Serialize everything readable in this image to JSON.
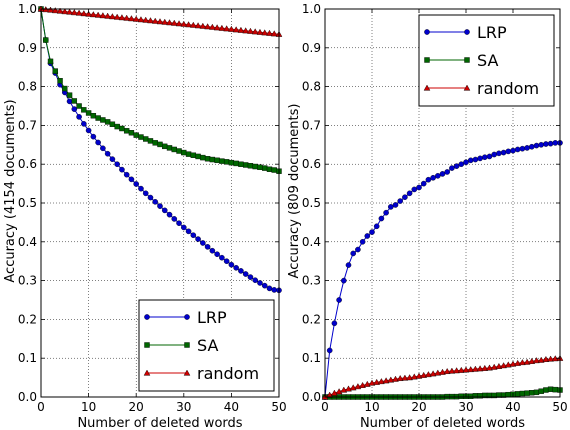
{
  "chart_data": [
    {
      "type": "line",
      "xlabel": "Number of deleted words",
      "ylabel": "Accuracy    (4154 documents)",
      "xlim": [
        0,
        50
      ],
      "ylim": [
        0,
        1.0
      ],
      "xticks": [
        "0",
        "10",
        "20",
        "30",
        "40",
        "50"
      ],
      "yticks": [
        "0.0",
        "0.1",
        "0.2",
        "0.3",
        "0.4",
        "0.5",
        "0.6",
        "0.7",
        "0.8",
        "0.9",
        "1.0"
      ],
      "grid": true,
      "legend_position": "bottom-right",
      "x": [
        0,
        1,
        2,
        3,
        4,
        5,
        6,
        7,
        8,
        9,
        10,
        11,
        12,
        13,
        14,
        15,
        16,
        17,
        18,
        19,
        20,
        21,
        22,
        23,
        24,
        25,
        26,
        27,
        28,
        29,
        30,
        31,
        32,
        33,
        34,
        35,
        36,
        37,
        38,
        39,
        40,
        41,
        42,
        43,
        44,
        45,
        46,
        47,
        48,
        49,
        50
      ],
      "series": [
        {
          "name": "LRP",
          "color": "#0000cc",
          "marker": "circle",
          "values": [
            1.0,
            0.92,
            0.86,
            0.835,
            0.805,
            0.785,
            0.762,
            0.742,
            0.722,
            0.704,
            0.687,
            0.671,
            0.656,
            0.641,
            0.627,
            0.613,
            0.6,
            0.586,
            0.573,
            0.561,
            0.549,
            0.537,
            0.525,
            0.514,
            0.503,
            0.492,
            0.481,
            0.47,
            0.459,
            0.448,
            0.437,
            0.427,
            0.417,
            0.407,
            0.397,
            0.387,
            0.377,
            0.368,
            0.359,
            0.35,
            0.341,
            0.333,
            0.325,
            0.317,
            0.309,
            0.301,
            0.294,
            0.287,
            0.28,
            0.276,
            0.275
          ]
        },
        {
          "name": "SA",
          "color": "#006600",
          "marker": "square",
          "values": [
            1.0,
            0.92,
            0.865,
            0.84,
            0.815,
            0.795,
            0.778,
            0.763,
            0.75,
            0.74,
            0.732,
            0.725,
            0.719,
            0.714,
            0.709,
            0.703,
            0.697,
            0.692,
            0.686,
            0.681,
            0.675,
            0.67,
            0.665,
            0.66,
            0.655,
            0.651,
            0.646,
            0.642,
            0.638,
            0.634,
            0.63,
            0.626,
            0.623,
            0.62,
            0.617,
            0.614,
            0.612,
            0.61,
            0.608,
            0.606,
            0.604,
            0.602,
            0.6,
            0.598,
            0.596,
            0.594,
            0.592,
            0.59,
            0.587,
            0.585,
            0.582
          ]
        },
        {
          "name": "random",
          "color": "#cc0000",
          "marker": "triangle",
          "values": [
            1.0,
            0.9987,
            0.9974,
            0.9961,
            0.9948,
            0.9935,
            0.9922,
            0.9909,
            0.9896,
            0.9883,
            0.987,
            0.9857,
            0.9844,
            0.9831,
            0.9818,
            0.9805,
            0.9792,
            0.9779,
            0.9766,
            0.9753,
            0.974,
            0.9727,
            0.9714,
            0.9701,
            0.9688,
            0.9675,
            0.9662,
            0.9649,
            0.9636,
            0.9623,
            0.961,
            0.9597,
            0.9584,
            0.9571,
            0.9558,
            0.9545,
            0.9532,
            0.9519,
            0.9506,
            0.9493,
            0.948,
            0.9467,
            0.9454,
            0.9441,
            0.9428,
            0.9415,
            0.9402,
            0.9389,
            0.9376,
            0.9363,
            0.935
          ]
        }
      ]
    },
    {
      "type": "line",
      "xlabel": "Number of deleted words",
      "ylabel": "Accuracy    (809 documents)",
      "xlim": [
        0,
        50
      ],
      "ylim": [
        0,
        1.0
      ],
      "xticks": [
        "0",
        "10",
        "20",
        "30",
        "40",
        "50"
      ],
      "yticks": [
        "0.0",
        "0.1",
        "0.2",
        "0.3",
        "0.4",
        "0.5",
        "0.6",
        "0.7",
        "0.8",
        "0.9",
        "1.0"
      ],
      "grid": true,
      "legend_position": "top-right",
      "x": [
        0,
        1,
        2,
        3,
        4,
        5,
        6,
        7,
        8,
        9,
        10,
        11,
        12,
        13,
        14,
        15,
        16,
        17,
        18,
        19,
        20,
        21,
        22,
        23,
        24,
        25,
        26,
        27,
        28,
        29,
        30,
        31,
        32,
        33,
        34,
        35,
        36,
        37,
        38,
        39,
        40,
        41,
        42,
        43,
        44,
        45,
        46,
        47,
        48,
        49,
        50
      ],
      "series": [
        {
          "name": "LRP",
          "color": "#0000cc",
          "marker": "circle",
          "values": [
            0.0,
            0.12,
            0.19,
            0.25,
            0.3,
            0.34,
            0.37,
            0.38,
            0.4,
            0.415,
            0.425,
            0.44,
            0.46,
            0.475,
            0.49,
            0.495,
            0.505,
            0.515,
            0.525,
            0.535,
            0.54,
            0.55,
            0.56,
            0.565,
            0.57,
            0.575,
            0.58,
            0.59,
            0.595,
            0.6,
            0.605,
            0.61,
            0.612,
            0.615,
            0.618,
            0.62,
            0.625,
            0.628,
            0.63,
            0.633,
            0.635,
            0.638,
            0.64,
            0.642,
            0.645,
            0.648,
            0.65,
            0.652,
            0.653,
            0.655,
            0.655
          ]
        },
        {
          "name": "SA",
          "color": "#006600",
          "marker": "square",
          "values": [
            0.0,
            0.0,
            0.0,
            0.0,
            0.0,
            0.0,
            0.0,
            0.0,
            0.0,
            0.0,
            0.0,
            0.0,
            0.0,
            0.0,
            0.0,
            0.0,
            0.0,
            0.0,
            0.0,
            0.0,
            0.0,
            0.0,
            0.0,
            0.0,
            0.0,
            0.0,
            0.001,
            0.001,
            0.001,
            0.002,
            0.002,
            0.002,
            0.003,
            0.003,
            0.004,
            0.004,
            0.004,
            0.005,
            0.005,
            0.006,
            0.007,
            0.008,
            0.009,
            0.01,
            0.011,
            0.012,
            0.015,
            0.018,
            0.02,
            0.019,
            0.018
          ]
        },
        {
          "name": "random",
          "color": "#cc0000",
          "marker": "triangle",
          "values": [
            0.0,
            0.005,
            0.01,
            0.014,
            0.018,
            0.021,
            0.024,
            0.027,
            0.03,
            0.033,
            0.036,
            0.038,
            0.04,
            0.042,
            0.044,
            0.046,
            0.048,
            0.049,
            0.05,
            0.052,
            0.054,
            0.056,
            0.058,
            0.06,
            0.062,
            0.064,
            0.066,
            0.067,
            0.068,
            0.069,
            0.07,
            0.071,
            0.072,
            0.073,
            0.074,
            0.075,
            0.077,
            0.079,
            0.081,
            0.083,
            0.085,
            0.087,
            0.089,
            0.09,
            0.092,
            0.094,
            0.095,
            0.097,
            0.098,
            0.099,
            0.1
          ]
        }
      ]
    }
  ]
}
